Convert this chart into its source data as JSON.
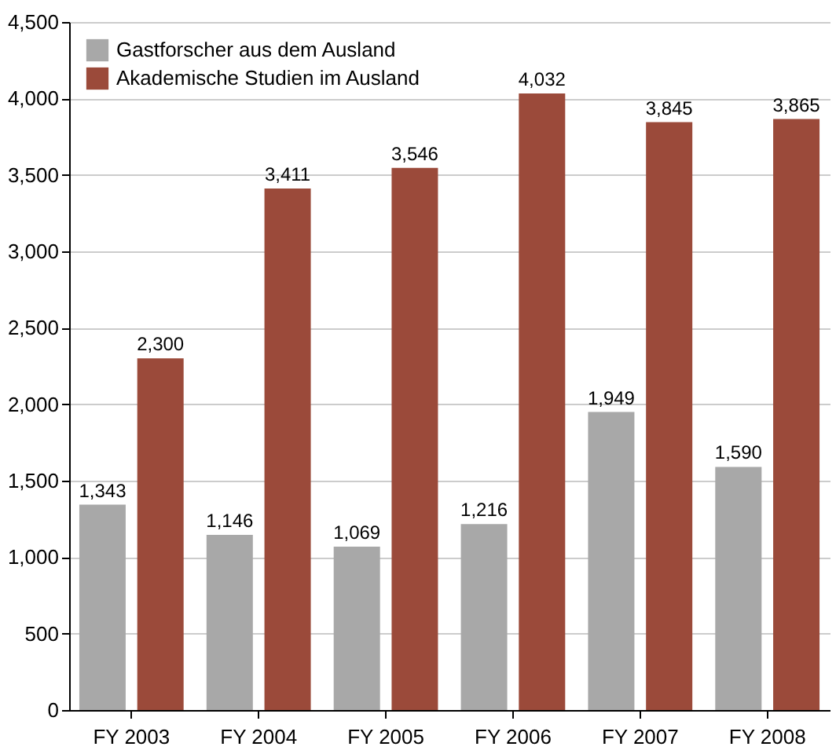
{
  "chart_data": {
    "type": "bar",
    "categories": [
      "FY 2003",
      "FY 2004",
      "FY 2005",
      "FY 2006",
      "FY 2007",
      "FY 2008"
    ],
    "series": [
      {
        "name": "Gastforscher aus dem Ausland",
        "color": "#a8a8a8",
        "values": [
          1343,
          1146,
          1069,
          1216,
          1949,
          1590
        ],
        "value_labels": [
          "1,343",
          "1,146",
          "1,069",
          "1,216",
          "1,949",
          "1,590"
        ]
      },
      {
        "name": "Akademische Studien im Ausland",
        "color": "#9b4a3a",
        "values": [
          2300,
          3411,
          3546,
          4032,
          3845,
          3865
        ],
        "value_labels": [
          "2,300",
          "3,411",
          "3,546",
          "4,032",
          "3,845",
          "3,865"
        ]
      }
    ],
    "ylim": [
      0,
      4500
    ],
    "yticks": [
      {
        "value": 0,
        "label": "0"
      },
      {
        "value": 500,
        "label": "500"
      },
      {
        "value": 1000,
        "label": "1,000"
      },
      {
        "value": 1500,
        "label": "1,500"
      },
      {
        "value": 2000,
        "label": "2,000"
      },
      {
        "value": 2500,
        "label": "2,500"
      },
      {
        "value": 3000,
        "label": "3,000"
      },
      {
        "value": 3500,
        "label": "3,500"
      },
      {
        "value": 4000,
        "label": "4,000"
      },
      {
        "value": 4500,
        "label": "4,500"
      }
    ],
    "grid": "y",
    "legend": "top left"
  }
}
